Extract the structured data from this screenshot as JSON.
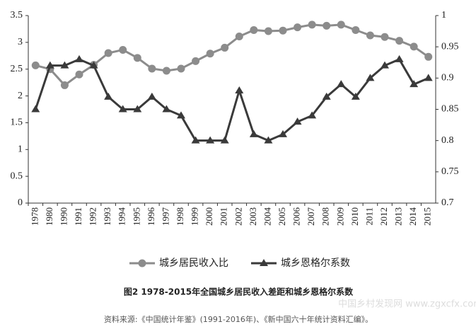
{
  "chart_data": {
    "type": "line",
    "categories": [
      "1978",
      "1980",
      "1990",
      "1991",
      "1992",
      "1993",
      "1994",
      "1995",
      "1996",
      "1997",
      "1998",
      "1999",
      "2000",
      "2001",
      "2002",
      "2003",
      "2004",
      "2005",
      "2006",
      "2007",
      "2008",
      "2009",
      "2010",
      "2011",
      "2012",
      "2013",
      "2014",
      "2015"
    ],
    "series": [
      {
        "name": "城乡居民收入比",
        "color": "#8c8c8c",
        "marker": "circle",
        "values": [
          2.57,
          2.5,
          2.2,
          2.4,
          2.58,
          2.8,
          2.86,
          2.71,
          2.51,
          2.47,
          2.51,
          2.65,
          2.79,
          2.9,
          3.11,
          3.23,
          3.21,
          3.22,
          3.28,
          3.33,
          3.31,
          3.33,
          3.23,
          3.13,
          3.1,
          3.03,
          2.92,
          2.73
        ]
      },
      {
        "name": "城乡恩格尔系数",
        "color": "#3a3a3a",
        "marker": "triangle",
        "axis": "y2",
        "values": [
          0.85,
          0.92,
          0.92,
          0.93,
          0.92,
          0.87,
          0.85,
          0.85,
          0.87,
          0.85,
          0.84,
          0.8,
          0.8,
          0.8,
          0.88,
          0.81,
          0.8,
          0.81,
          0.83,
          0.84,
          0.87,
          0.89,
          0.87,
          0.9,
          0.92,
          0.93,
          0.89,
          0.9
        ]
      }
    ],
    "ylim": [
      0,
      3.5
    ],
    "yticks": [
      0,
      0.5,
      1,
      1.5,
      2,
      2.5,
      3,
      3.5
    ],
    "y2lim": [
      0.7,
      1
    ],
    "y2ticks": [
      0.7,
      0.75,
      0.8,
      0.85,
      0.9,
      0.95,
      1
    ],
    "grid": false,
    "legend": "bottom",
    "caption": "图2 1978-2015年全国城乡居民收入差距和城乡恩格尔系数",
    "source": "资料来源:《中国统计年鉴》(1991-2016年)、《新中国六十年统计资料汇编》。",
    "watermark": "中国乡村发现网 www.zgxcfx.com"
  }
}
